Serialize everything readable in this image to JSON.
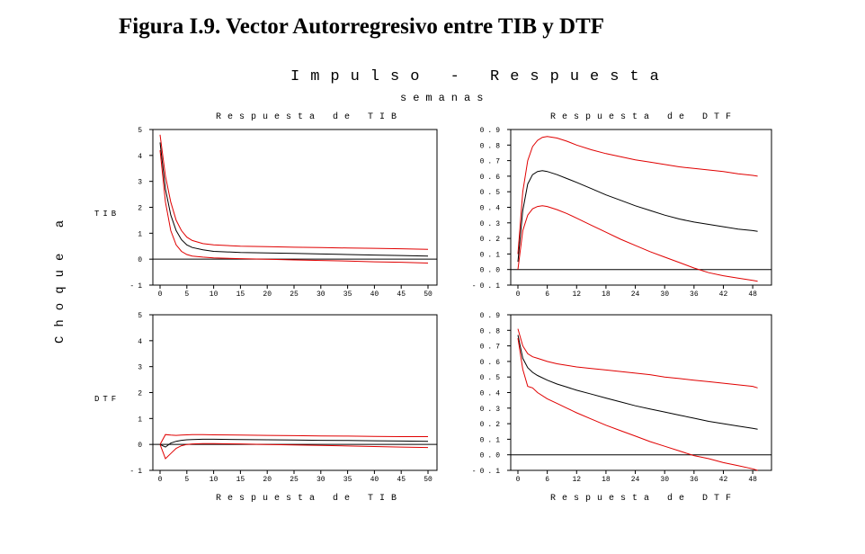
{
  "title": "Figura I.9.  Vector Autorregresivo entre  TIB  y  DTF",
  "header": {
    "main": "Impulso - Respuesta",
    "sub": "semanas",
    "col_left": "Respuesta de TIB",
    "col_right": "Respuesta de DTF",
    "bottom_left": "Respuesta de TIB",
    "bottom_right": "Respuesta de DTF",
    "row_axis": "Choque a",
    "row_tib": "TIB",
    "row_dtf": "DTF"
  },
  "colors": {
    "response": "#000000",
    "band": "#e00000",
    "axis": "#000000"
  },
  "chart_data": [
    {
      "id": "tib_tib",
      "type": "line",
      "shock": "TIB",
      "response": "TIB",
      "xlim": [
        0,
        50
      ],
      "ylim": [
        -1,
        5
      ],
      "xticks": [
        0,
        5,
        10,
        15,
        20,
        25,
        30,
        35,
        40,
        45,
        50
      ],
      "yticks": [
        -1,
        0,
        1,
        2,
        3,
        4,
        5
      ],
      "x": [
        0,
        1,
        2,
        3,
        4,
        5,
        6,
        8,
        10,
        15,
        20,
        25,
        30,
        35,
        40,
        45,
        50
      ],
      "series": [
        {
          "name": "upper",
          "color": "red",
          "values": [
            4.8,
            3.2,
            2.2,
            1.5,
            1.1,
            0.85,
            0.72,
            0.6,
            0.55,
            0.5,
            0.48,
            0.46,
            0.45,
            0.43,
            0.42,
            0.4,
            0.38
          ]
        },
        {
          "name": "response",
          "color": "black",
          "values": [
            4.5,
            2.7,
            1.7,
            1.1,
            0.75,
            0.55,
            0.45,
            0.36,
            0.3,
            0.26,
            0.24,
            0.22,
            0.2,
            0.18,
            0.16,
            0.14,
            0.12
          ]
        },
        {
          "name": "lower",
          "color": "red",
          "values": [
            4.2,
            2.2,
            1.1,
            0.55,
            0.3,
            0.18,
            0.12,
            0.08,
            0.05,
            0.02,
            0.0,
            -0.03,
            -0.05,
            -0.07,
            -0.1,
            -0.12,
            -0.15
          ]
        }
      ]
    },
    {
      "id": "tib_dtf",
      "type": "line",
      "shock": "TIB",
      "response": "DTF",
      "xlim": [
        0,
        50
      ],
      "ylim": [
        -0.1,
        0.9
      ],
      "xticks": [
        0,
        6,
        12,
        18,
        24,
        30,
        36,
        42,
        48
      ],
      "yticks": [
        -0.1,
        0.0,
        0.1,
        0.2,
        0.3,
        0.4,
        0.5,
        0.6,
        0.7,
        0.8,
        0.9
      ],
      "x": [
        0,
        1,
        2,
        3,
        4,
        5,
        6,
        8,
        10,
        12,
        15,
        18,
        21,
        24,
        27,
        30,
        33,
        36,
        39,
        42,
        45,
        48,
        49
      ],
      "series": [
        {
          "name": "upper",
          "color": "red",
          "values": [
            0.1,
            0.5,
            0.7,
            0.79,
            0.83,
            0.85,
            0.855,
            0.845,
            0.825,
            0.8,
            0.77,
            0.745,
            0.725,
            0.705,
            0.69,
            0.675,
            0.66,
            0.65,
            0.64,
            0.63,
            0.615,
            0.605,
            0.6
          ]
        },
        {
          "name": "response",
          "color": "black",
          "values": [
            0.05,
            0.38,
            0.55,
            0.61,
            0.63,
            0.635,
            0.63,
            0.61,
            0.585,
            0.56,
            0.52,
            0.48,
            0.445,
            0.41,
            0.38,
            0.35,
            0.325,
            0.305,
            0.29,
            0.275,
            0.26,
            0.25,
            0.245
          ]
        },
        {
          "name": "lower",
          "color": "red",
          "values": [
            0.0,
            0.25,
            0.35,
            0.39,
            0.405,
            0.41,
            0.405,
            0.385,
            0.36,
            0.33,
            0.285,
            0.24,
            0.195,
            0.155,
            0.115,
            0.08,
            0.045,
            0.01,
            -0.02,
            -0.04,
            -0.055,
            -0.07,
            -0.075
          ]
        }
      ]
    },
    {
      "id": "dtf_tib",
      "type": "line",
      "shock": "DTF",
      "response": "TIB",
      "xlim": [
        0,
        50
      ],
      "ylim": [
        -1,
        5
      ],
      "xticks": [
        0,
        5,
        10,
        15,
        20,
        25,
        30,
        35,
        40,
        45,
        50
      ],
      "yticks": [
        -1,
        0,
        1,
        2,
        3,
        4,
        5
      ],
      "x": [
        0,
        1,
        2,
        3,
        4,
        5,
        6,
        8,
        10,
        15,
        20,
        25,
        30,
        35,
        40,
        45,
        50
      ],
      "series": [
        {
          "name": "upper",
          "color": "red",
          "values": [
            0.0,
            0.38,
            0.36,
            0.35,
            0.36,
            0.37,
            0.38,
            0.38,
            0.37,
            0.36,
            0.35,
            0.34,
            0.33,
            0.32,
            0.31,
            0.3,
            0.3
          ]
        },
        {
          "name": "response",
          "color": "black",
          "values": [
            0.0,
            -0.1,
            0.05,
            0.12,
            0.16,
            0.18,
            0.19,
            0.2,
            0.2,
            0.19,
            0.18,
            0.17,
            0.16,
            0.15,
            0.14,
            0.13,
            0.12
          ]
        },
        {
          "name": "lower",
          "color": "red",
          "values": [
            0.0,
            -0.55,
            -0.35,
            -0.15,
            -0.05,
            0.0,
            0.02,
            0.03,
            0.03,
            0.02,
            0.0,
            -0.02,
            -0.04,
            -0.06,
            -0.08,
            -0.1,
            -0.12
          ]
        }
      ]
    },
    {
      "id": "dtf_dtf",
      "type": "line",
      "shock": "DTF",
      "response": "DTF",
      "xlim": [
        0,
        50
      ],
      "ylim": [
        -0.1,
        0.9
      ],
      "xticks": [
        0,
        6,
        12,
        18,
        24,
        30,
        36,
        42,
        48
      ],
      "yticks": [
        -0.1,
        0.0,
        0.1,
        0.2,
        0.3,
        0.4,
        0.5,
        0.6,
        0.7,
        0.8,
        0.9
      ],
      "x": [
        0,
        1,
        2,
        3,
        4,
        6,
        8,
        10,
        12,
        15,
        18,
        21,
        24,
        27,
        30,
        33,
        36,
        39,
        42,
        45,
        48,
        49
      ],
      "series": [
        {
          "name": "upper",
          "color": "red",
          "values": [
            0.81,
            0.7,
            0.65,
            0.63,
            0.62,
            0.6,
            0.585,
            0.575,
            0.565,
            0.555,
            0.545,
            0.535,
            0.525,
            0.515,
            0.5,
            0.49,
            0.48,
            0.47,
            0.46,
            0.45,
            0.44,
            0.43
          ]
        },
        {
          "name": "response",
          "color": "black",
          "values": [
            0.77,
            0.62,
            0.56,
            0.53,
            0.51,
            0.48,
            0.455,
            0.435,
            0.415,
            0.39,
            0.365,
            0.34,
            0.315,
            0.295,
            0.275,
            0.255,
            0.235,
            0.215,
            0.2,
            0.185,
            0.17,
            0.165
          ]
        },
        {
          "name": "lower",
          "color": "red",
          "values": [
            0.75,
            0.55,
            0.44,
            0.43,
            0.4,
            0.36,
            0.33,
            0.3,
            0.27,
            0.23,
            0.19,
            0.155,
            0.12,
            0.085,
            0.055,
            0.025,
            -0.005,
            -0.025,
            -0.05,
            -0.07,
            -0.09,
            -0.1
          ]
        }
      ]
    }
  ]
}
